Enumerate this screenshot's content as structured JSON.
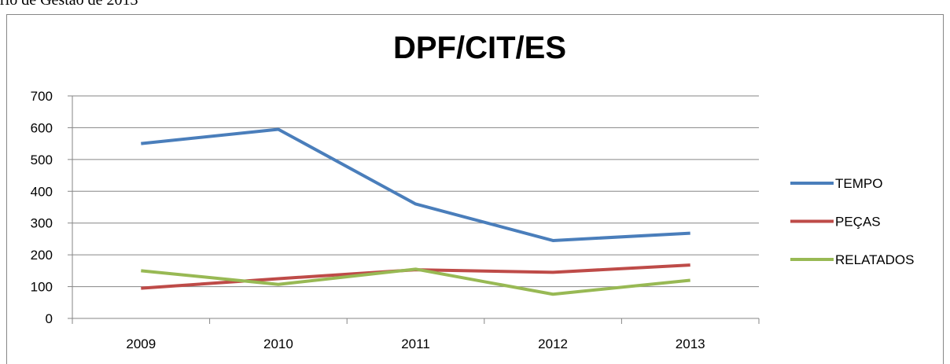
{
  "caption": "rio de Gestão de 2013",
  "chart_data": {
    "type": "line",
    "title": "DPF/CIT/ES",
    "categories": [
      "2009",
      "2010",
      "2011",
      "2012",
      "2013"
    ],
    "series": [
      {
        "name": "TEMPO",
        "color": "#4a7ebb",
        "values": [
          550,
          595,
          360,
          245,
          268
        ]
      },
      {
        "name": "PEÇAS",
        "color": "#be4b48",
        "values": [
          95,
          125,
          153,
          145,
          168
        ]
      },
      {
        "name": "RELATADOS",
        "color": "#98b954",
        "values": [
          150,
          107,
          155,
          76,
          120
        ]
      }
    ],
    "ylim": [
      0,
      700
    ],
    "yticks": [
      0,
      100,
      200,
      300,
      400,
      500,
      600,
      700
    ],
    "grid": true,
    "legend": "right"
  }
}
